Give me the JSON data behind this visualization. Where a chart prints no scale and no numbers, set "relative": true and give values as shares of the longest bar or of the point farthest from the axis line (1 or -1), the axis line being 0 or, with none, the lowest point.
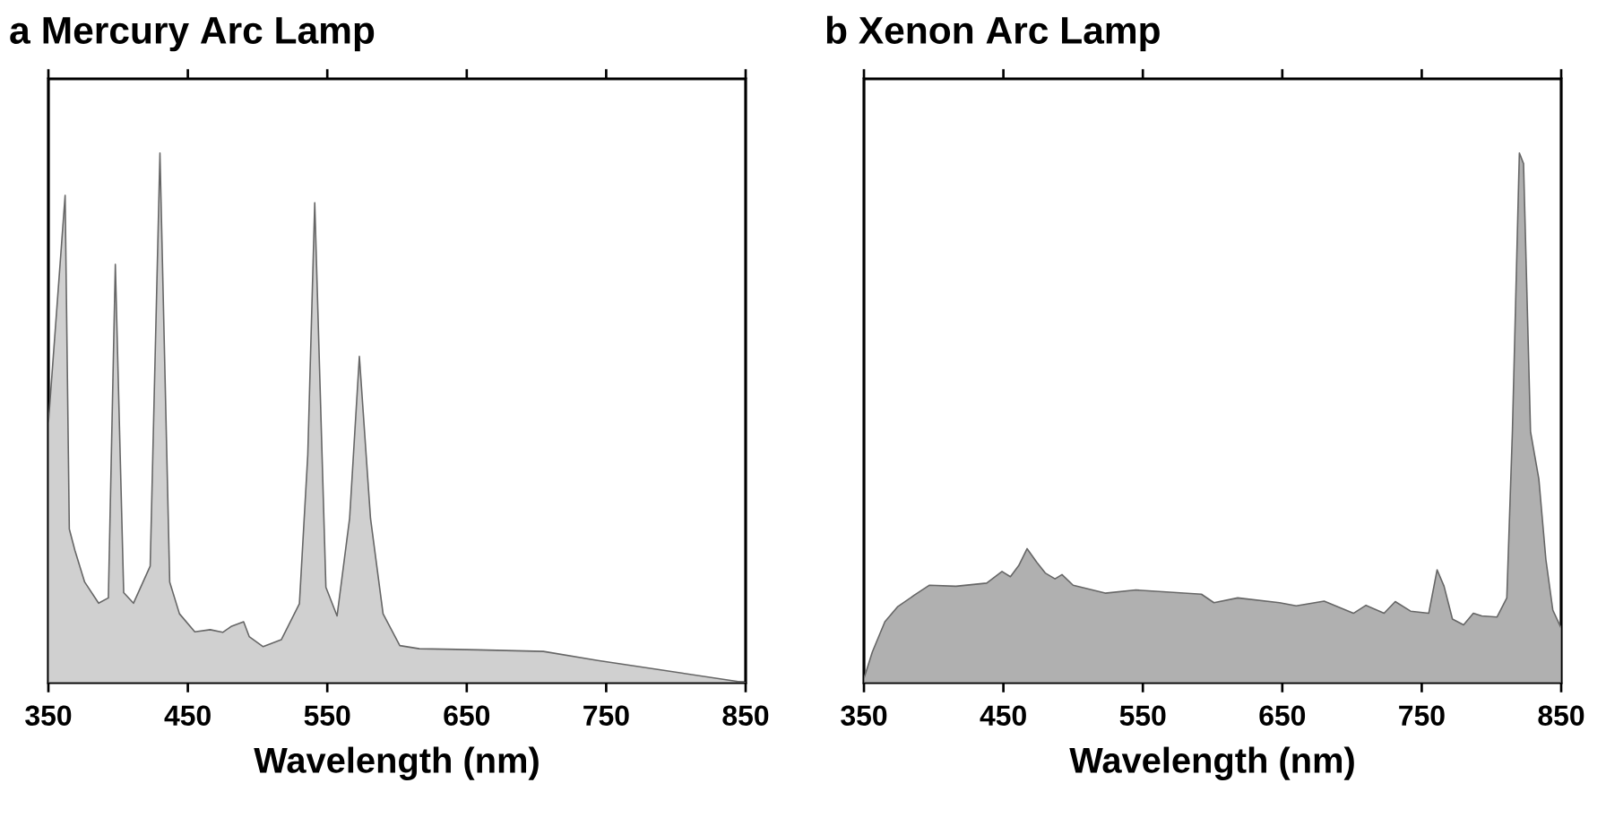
{
  "chart_data": [
    {
      "type": "area",
      "title": "**a**  Mercury Arc Lamp",
      "xlabel": "Wavelength (nm)",
      "relative": true,
      "tick_labels": "x",
      "xlim": [
        350,
        850
      ],
      "xticks": [
        350,
        450,
        550,
        650,
        750,
        850
      ],
      "color": "#d0d0d0",
      "x": [
        350,
        362,
        365,
        369,
        376,
        386,
        393,
        398,
        404,
        411,
        423,
        430,
        437,
        444,
        455,
        466,
        475,
        481,
        490,
        494,
        504,
        517,
        530,
        536,
        541,
        549,
        557,
        566,
        573,
        581,
        590,
        602,
        616,
        658,
        705,
        744,
        787,
        850
      ],
      "values": [
        0.49,
        0.92,
        0.29,
        0.25,
        0.19,
        0.15,
        0.16,
        0.79,
        0.17,
        0.15,
        0.22,
        1.0,
        0.19,
        0.13,
        0.096,
        0.1,
        0.095,
        0.106,
        0.115,
        0.087,
        0.068,
        0.081,
        0.149,
        0.43,
        0.906,
        0.18,
        0.126,
        0.31,
        0.616,
        0.31,
        0.13,
        0.07,
        0.064,
        0.062,
        0.059,
        0.042,
        0.025,
        0
      ]
    },
    {
      "type": "area",
      "title": "**b**  Xenon Arc Lamp",
      "xlabel": "Wavelength (nm)",
      "relative": true,
      "tick_labels": "x",
      "xlim": [
        350,
        850
      ],
      "xticks": [
        350,
        450,
        550,
        650,
        750,
        850
      ],
      "color": "#b0b0b0",
      "x": [
        350,
        356,
        365,
        374,
        386,
        397,
        416,
        438,
        449,
        455,
        461,
        467,
        474,
        480,
        487,
        492,
        500,
        523,
        545,
        592,
        601,
        618,
        648,
        660,
        680,
        701,
        710,
        723,
        731,
        742,
        755,
        761,
        766,
        772,
        780,
        787,
        793,
        804,
        811,
        815,
        820,
        823,
        828,
        834,
        839,
        844,
        850
      ],
      "values": [
        0.008,
        0.058,
        0.115,
        0.143,
        0.165,
        0.184,
        0.182,
        0.188,
        0.21,
        0.2,
        0.221,
        0.253,
        0.227,
        0.207,
        0.196,
        0.204,
        0.184,
        0.169,
        0.175,
        0.167,
        0.151,
        0.16,
        0.151,
        0.145,
        0.154,
        0.131,
        0.146,
        0.131,
        0.153,
        0.135,
        0.131,
        0.213,
        0.182,
        0.12,
        0.109,
        0.131,
        0.126,
        0.124,
        0.16,
        0.474,
        1.0,
        0.98,
        0.474,
        0.384,
        0.233,
        0.137,
        0.103
      ]
    }
  ]
}
